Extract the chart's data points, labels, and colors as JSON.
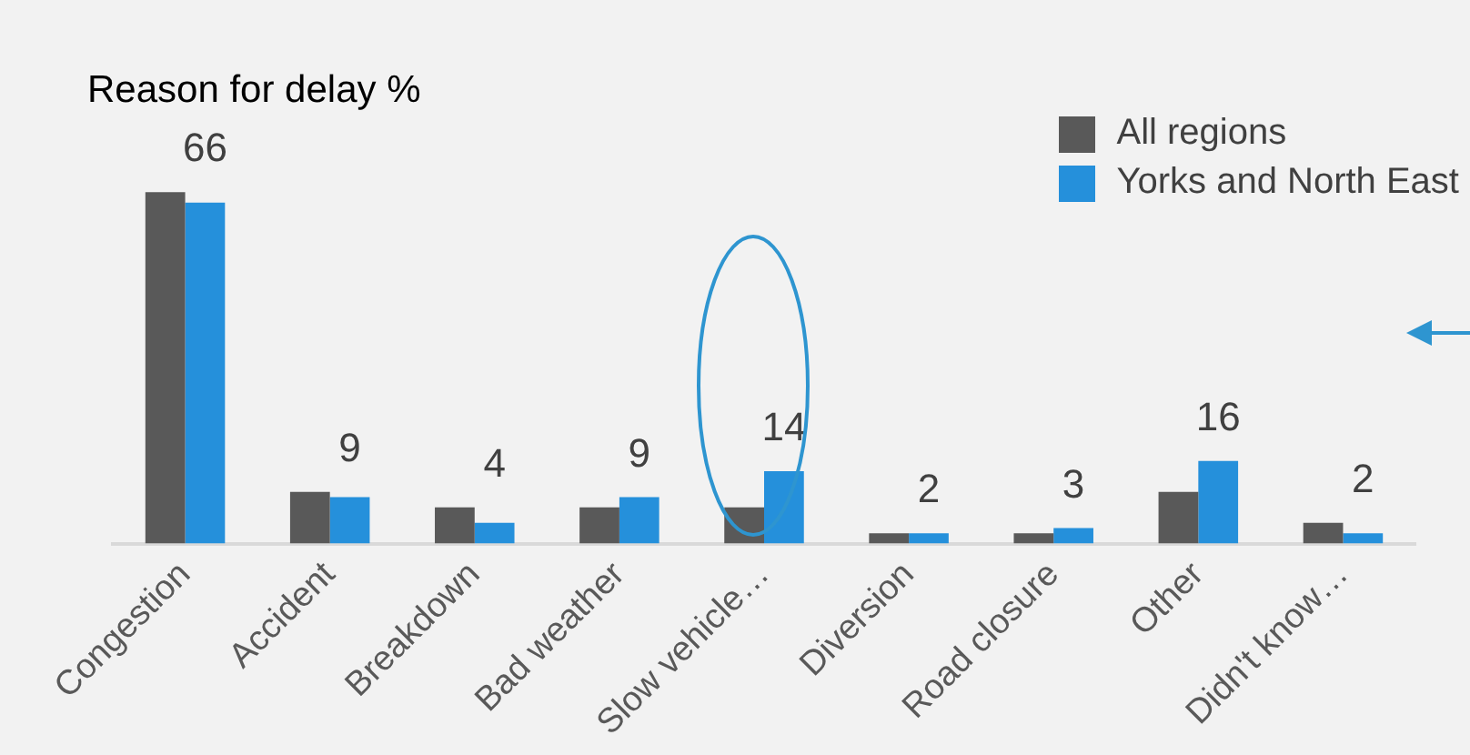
{
  "chart_data": {
    "type": "bar",
    "title": "Reason for delay %",
    "categories": [
      "Congestion",
      "Accident",
      "Breakdown",
      "Bad weather",
      "Slow vehicle…",
      "Diversion",
      "Road closure",
      "Other",
      "Didn't know…"
    ],
    "series": [
      {
        "name": "All regions",
        "color": "#595959",
        "values": [
          68,
          10,
          7,
          7,
          7,
          2,
          2,
          10,
          4
        ]
      },
      {
        "name": "Yorks and North East",
        "color": "#2590db",
        "values": [
          66,
          9,
          4,
          9,
          14,
          2,
          3,
          16,
          2
        ],
        "value_labels": [
          "66",
          "9",
          "4",
          "9",
          "14",
          "2",
          "3",
          "16",
          "2"
        ]
      }
    ],
    "legend": "top right"
  }
}
